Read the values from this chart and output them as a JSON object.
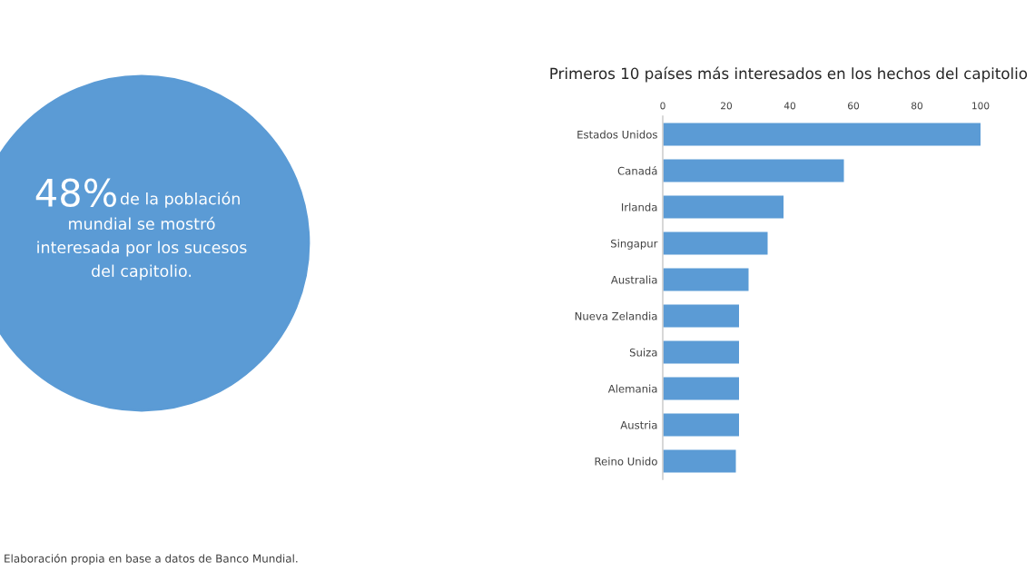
{
  "chart_data": [
    {
      "type": "other",
      "color": "#5b9bd5",
      "annotations": [
        "48%",
        "de la población",
        "mundial se mostró",
        "interesada por los sucesos",
        "del capitolio."
      ]
    },
    {
      "type": "bar",
      "orientation": "horizontal",
      "title": "Primeros 10 países más interesados en los hechos del capitolio",
      "categories": [
        "Estados Unidos",
        "Canadá",
        "Irlanda",
        "Singapur",
        "Australia",
        "Nueva Zelandia",
        "Suiza",
        "Alemania",
        "Austria",
        "Reino Unido"
      ],
      "values": [
        100,
        57,
        38,
        33,
        27,
        24,
        24,
        24,
        24,
        23
      ],
      "color": "#5b9bd5",
      "xlim": [
        0,
        100
      ],
      "xticks": [
        0,
        20,
        40,
        60,
        80,
        100
      ],
      "grid": false,
      "annotations": [
        "Elaboración propia en base a datos de Banco Mundial."
      ]
    }
  ]
}
